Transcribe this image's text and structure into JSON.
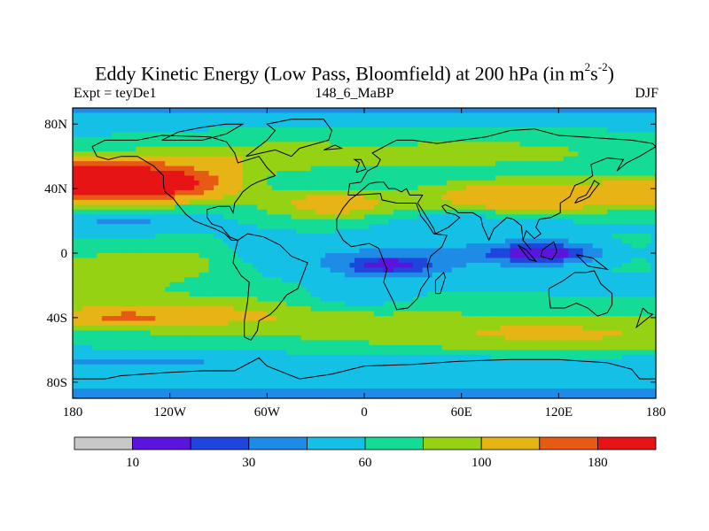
{
  "chart_data": {
    "type": "heatmap",
    "title_main": "Eddy Kinetic Energy (Low Pass, Bloomfield) at 200 hPa (in m",
    "title_sup1": "2",
    "title_s": "s",
    "title_sup2": "-2",
    "title_end": ")",
    "left_label": "Expt = teyDe1",
    "center_label": "148_6_MaBP",
    "right_label": "DJF",
    "x_range": [
      -180,
      180
    ],
    "y_range": [
      -90,
      90
    ],
    "x_ticks": [
      {
        "value": -180,
        "label": "180"
      },
      {
        "value": -120,
        "label": "120W"
      },
      {
        "value": -60,
        "label": "60W"
      },
      {
        "value": 0,
        "label": "0"
      },
      {
        "value": 60,
        "label": "60E"
      },
      {
        "value": 120,
        "label": "120E"
      },
      {
        "value": 180,
        "label": "180"
      }
    ],
    "y_ticks": [
      {
        "value": 80,
        "label": "80N"
      },
      {
        "value": 40,
        "label": "40N"
      },
      {
        "value": 0,
        "label": "0"
      },
      {
        "value": -40,
        "label": "40S"
      },
      {
        "value": -80,
        "label": "80S"
      }
    ],
    "levels": [
      10,
      20,
      30,
      45,
      60,
      80,
      100,
      140,
      180
    ],
    "colors": [
      "#c8c8c8",
      "#5a14dc",
      "#1e46dc",
      "#1e8ce6",
      "#14c0e6",
      "#14dc96",
      "#96d214",
      "#e6b414",
      "#e65a14",
      "#e61414"
    ],
    "colorbar_labels": [
      {
        "value": 10,
        "label": "10"
      },
      {
        "value": 30,
        "label": "30"
      },
      {
        "value": 60,
        "label": "60"
      },
      {
        "value": 100,
        "label": "100"
      },
      {
        "value": 180,
        "label": "180"
      }
    ]
  }
}
